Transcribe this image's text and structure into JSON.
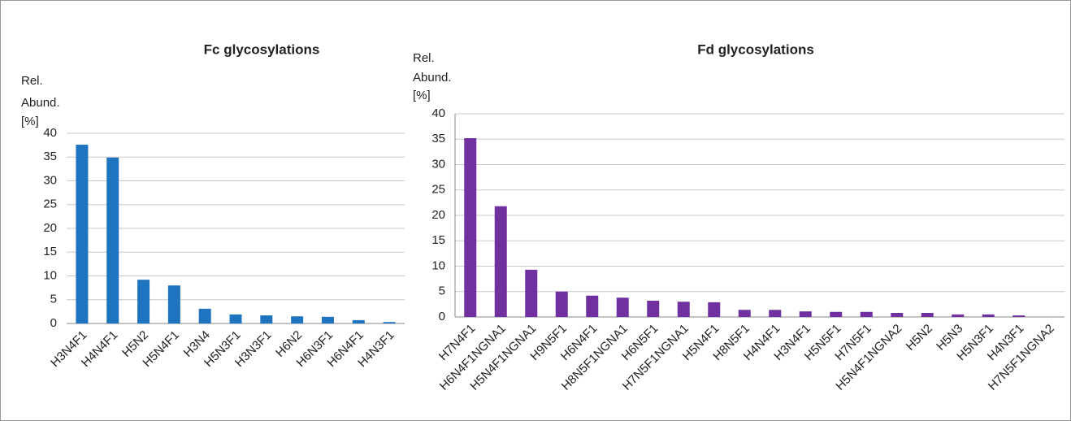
{
  "chart_data": [
    {
      "type": "bar",
      "title": "Fc glycosylations",
      "y_label": [
        "Rel.",
        "Abund.",
        "[%]"
      ],
      "categories": [
        "H3N4F1",
        "H4N4F1",
        "H5N2",
        "H5N4F1",
        "H3N4",
        "H5N3F1",
        "H3N3F1",
        "H6N2",
        "H6N3F1",
        "H6N4F1",
        "H4N3F1"
      ],
      "values": [
        37.6,
        34.9,
        9.2,
        8.0,
        3.1,
        1.9,
        1.7,
        1.5,
        1.4,
        0.7,
        0.3
      ],
      "color": "#1f74c0",
      "ylim": [
        0,
        40
      ],
      "yticks": [
        0,
        5,
        10,
        15,
        20,
        25,
        30,
        35,
        40
      ],
      "grid": true
    },
    {
      "type": "bar",
      "title": "Fd glycosylations",
      "y_label": [
        "Rel.",
        "Abund.",
        "[%]"
      ],
      "categories": [
        "H7N4F1",
        "H6N4F1NGNA1",
        "H5N4F1NGNA1",
        "H9N5F1",
        "H6N4F1",
        "H8N5F1NGNA1",
        "H6N5F1",
        "H7N5F1NGNA1",
        "H5N4F1",
        "H8N5F1",
        "H4N4F1",
        "H3N4F1",
        "H5N5F1",
        "H7N5F1",
        "H5N4F1NGNA2",
        "H5N2",
        "H5N3",
        "H5N3F1",
        "H4N3F1",
        "H7N5F1NGNA2"
      ],
      "values": [
        35.2,
        21.8,
        9.3,
        5.0,
        4.2,
        3.8,
        3.2,
        3.0,
        2.9,
        1.4,
        1.4,
        1.1,
        1.0,
        1.0,
        0.8,
        0.8,
        0.5,
        0.5,
        0.3,
        0
      ],
      "color": "#7030a0",
      "ylim": [
        0,
        40
      ],
      "yticks": [
        0,
        5,
        10,
        15,
        20,
        25,
        30,
        35,
        40
      ],
      "grid": true
    }
  ]
}
